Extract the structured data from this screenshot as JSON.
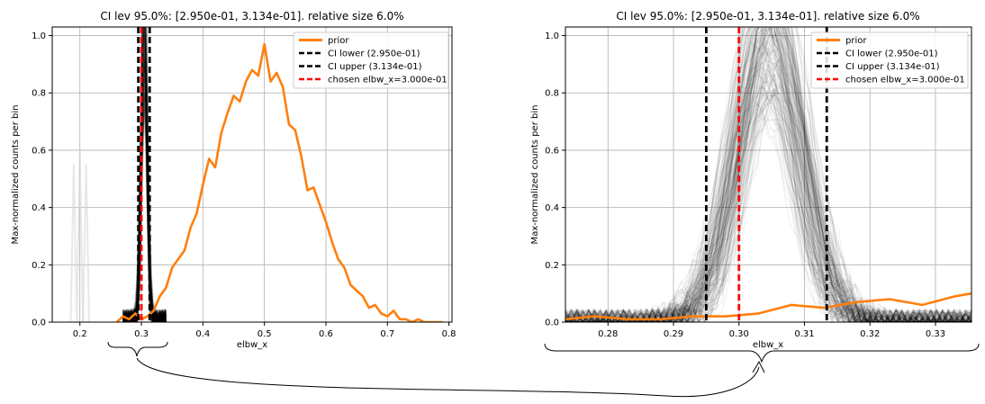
{
  "chart_data": [
    {
      "type": "line",
      "title": "CI lev 95.0%: [2.950e-01, 3.134e-01]. relative size 6.0%",
      "xlabel": "elbw_x",
      "ylabel": "Max-normalized counts per bin",
      "xlim": [
        0.155,
        0.805
      ],
      "ylim": [
        0.0,
        1.03
      ],
      "xticks": [
        0.2,
        0.3,
        0.4,
        0.5,
        0.6,
        0.7,
        0.8
      ],
      "xtick_labels": [
        "0.2",
        "0.3",
        "0.4",
        "0.5",
        "0.6",
        "0.7",
        "0.8"
      ],
      "yticks": [
        0.0,
        0.2,
        0.4,
        0.6,
        0.8,
        1.0
      ],
      "ytick_labels": [
        "0.0",
        "0.2",
        "0.4",
        "0.6",
        "0.8",
        "1.0"
      ],
      "grid": true,
      "legend_position": "top-right",
      "series": [
        {
          "name": "prior",
          "color": "#ff7f0e",
          "style": "solid",
          "x": [
            0.26,
            0.27,
            0.28,
            0.29,
            0.3,
            0.31,
            0.32,
            0.33,
            0.34,
            0.35,
            0.36,
            0.37,
            0.38,
            0.39,
            0.4,
            0.41,
            0.42,
            0.43,
            0.44,
            0.45,
            0.46,
            0.47,
            0.48,
            0.49,
            0.5,
            0.51,
            0.52,
            0.53,
            0.54,
            0.55,
            0.56,
            0.57,
            0.58,
            0.59,
            0.6,
            0.61,
            0.62,
            0.63,
            0.64,
            0.65,
            0.66,
            0.67,
            0.68,
            0.69,
            0.7,
            0.71,
            0.72,
            0.73,
            0.74,
            0.75,
            0.76,
            0.77,
            0.78,
            0.79
          ],
          "values": [
            0.0,
            0.02,
            0.01,
            0.03,
            0.01,
            0.02,
            0.04,
            0.09,
            0.12,
            0.19,
            0.22,
            0.25,
            0.33,
            0.38,
            0.48,
            0.57,
            0.54,
            0.66,
            0.73,
            0.79,
            0.77,
            0.84,
            0.88,
            0.86,
            0.97,
            0.84,
            0.87,
            0.82,
            0.69,
            0.67,
            0.58,
            0.46,
            0.47,
            0.41,
            0.35,
            0.28,
            0.22,
            0.19,
            0.13,
            0.11,
            0.09,
            0.05,
            0.06,
            0.03,
            0.02,
            0.04,
            0.01,
            0.01,
            0.0,
            0.01,
            0.0,
            0.0,
            0.0,
            0.0
          ]
        },
        {
          "name": "CI lower (2.950e-01)",
          "color": "#000000",
          "style": "dashed",
          "x": [
            0.295
          ]
        },
        {
          "name": "CI upper (3.134e-01)",
          "color": "#000000",
          "style": "dashed",
          "x": [
            0.3134
          ]
        },
        {
          "name": "chosen elbw_x=3.000e-01",
          "color": "#ff0000",
          "style": "dashed",
          "x": [
            0.3
          ]
        }
      ]
    },
    {
      "type": "line",
      "title": "CI lev 95.0%: [2.950e-01, 3.134e-01]. relative size 6.0%",
      "xlabel": "elbw_x",
      "ylabel": "Max-normalized counts per bin",
      "xlim": [
        0.2735,
        0.3355
      ],
      "ylim": [
        0.0,
        1.03
      ],
      "xticks": [
        0.28,
        0.29,
        0.3,
        0.31,
        0.32,
        0.33
      ],
      "xtick_labels": [
        "0.28",
        "0.29",
        "0.30",
        "0.31",
        "0.32",
        "0.33"
      ],
      "yticks": [
        0.0,
        0.2,
        0.4,
        0.6,
        0.8,
        1.0
      ],
      "ytick_labels": [
        "0.0",
        "0.2",
        "0.4",
        "0.6",
        "0.8",
        "1.0"
      ],
      "grid": true,
      "legend_position": "top-right",
      "series": [
        {
          "name": "prior",
          "color": "#ff7f0e",
          "style": "solid",
          "x": [
            0.2735,
            0.278,
            0.283,
            0.288,
            0.293,
            0.298,
            0.303,
            0.308,
            0.313,
            0.318,
            0.323,
            0.328,
            0.333,
            0.3355
          ],
          "values": [
            0.01,
            0.02,
            0.01,
            0.01,
            0.02,
            0.02,
            0.03,
            0.06,
            0.05,
            0.07,
            0.08,
            0.06,
            0.09,
            0.1
          ]
        },
        {
          "name": "CI lower (2.950e-01)",
          "color": "#000000",
          "style": "dashed",
          "x": [
            0.295
          ]
        },
        {
          "name": "CI upper (3.134e-01)",
          "color": "#000000",
          "style": "dashed",
          "x": [
            0.3134
          ]
        },
        {
          "name": "chosen elbw_x=3.000e-01",
          "color": "#ff0000",
          "style": "dashed",
          "x": [
            0.3
          ]
        }
      ]
    }
  ]
}
